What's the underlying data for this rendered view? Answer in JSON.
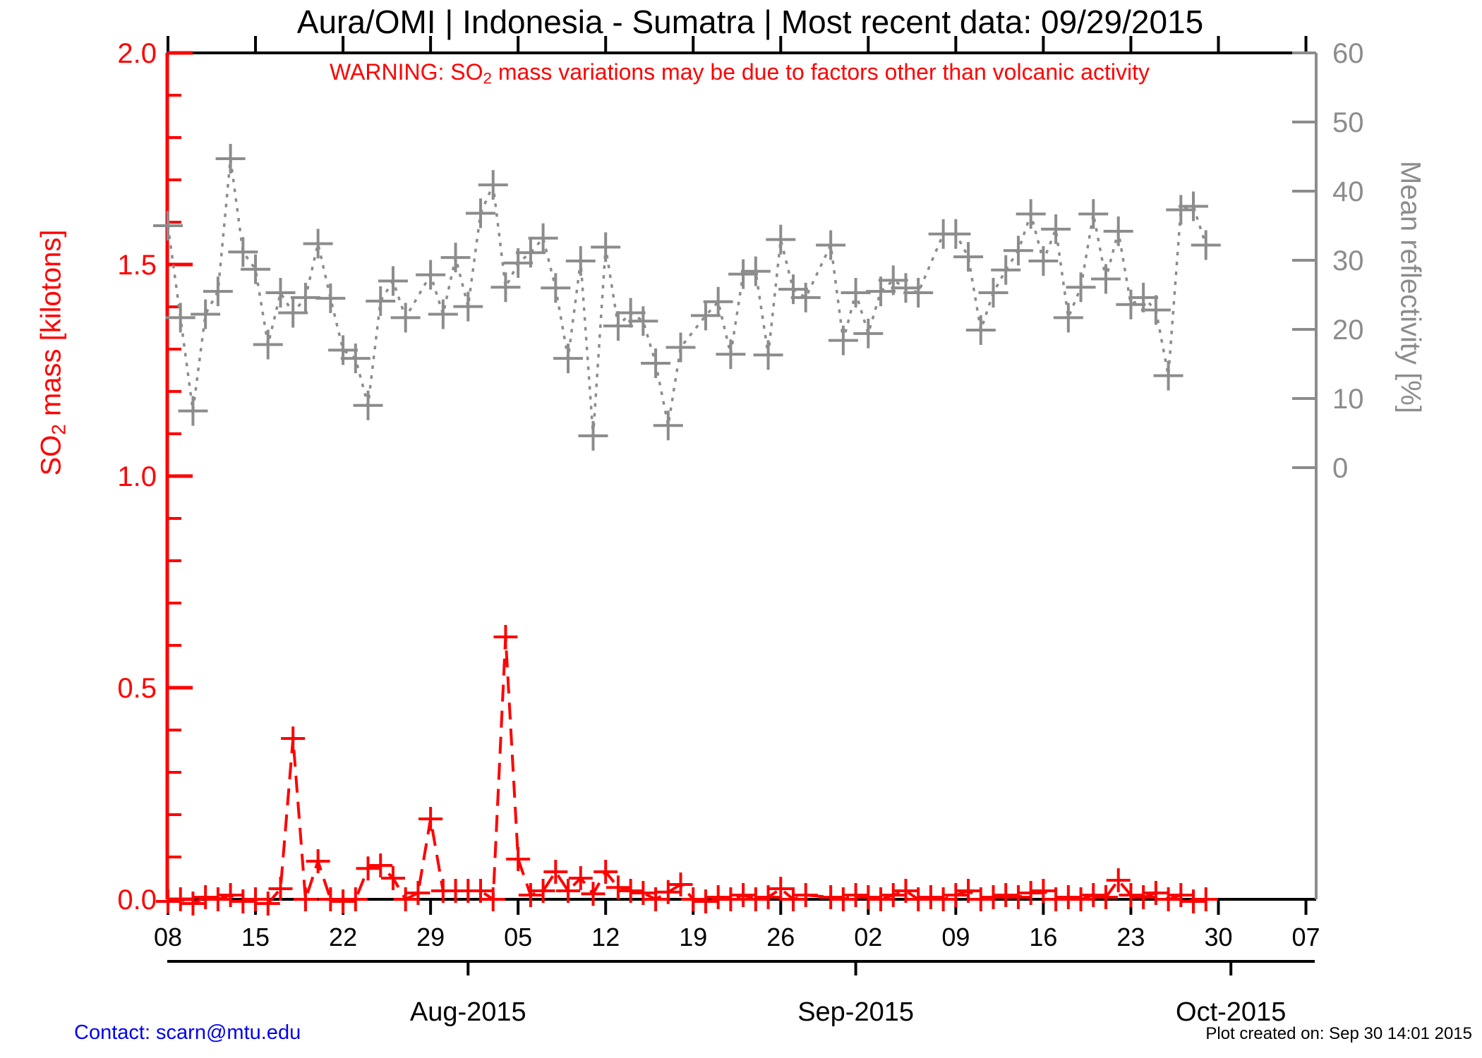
{
  "page": {
    "title": "Aura/OMI | Indonesia - Sumatra | Most recent data: 09/29/2015"
  },
  "warning": {
    "prefix": "WARNING: SO",
    "sub": "2",
    "suffix": " mass variations may be due to factors other than volcanic activity",
    "color": "#ff0000"
  },
  "axes": {
    "left": {
      "title_prefix": "SO",
      "title_sub": "2",
      "title_suffix": " mass [kilotons]",
      "tick_labels": [
        "0.0",
        "0.5",
        "1.0",
        "1.5",
        "2.0"
      ],
      "tick_values": [
        0,
        0.5,
        1,
        1.5,
        2
      ],
      "minor_step": 0.1,
      "range": [
        0,
        2
      ],
      "color": "#ff0000"
    },
    "right": {
      "title": "Mean reflectivity [%]",
      "tick_labels": [
        "0",
        "10",
        "20",
        "30",
        "40",
        "50",
        "60"
      ],
      "tick_values": [
        0,
        10,
        20,
        30,
        40,
        50,
        60
      ],
      "range_shown": [
        0,
        60
      ],
      "color": "#8c8c8c"
    },
    "bottom": {
      "week_tick_labels": [
        "08",
        "15",
        "22",
        "29",
        "05",
        "12",
        "19",
        "26",
        "02",
        "09",
        "16",
        "23",
        "30",
        "07"
      ],
      "week_tick_days": [
        0,
        7,
        14,
        21,
        28,
        35,
        42,
        49,
        56,
        63,
        70,
        77,
        84,
        91
      ],
      "color": "#000000"
    },
    "months": {
      "labels": [
        "Aug-2015",
        "Sep-2015",
        "Oct-2015"
      ],
      "tick_days": [
        24,
        55,
        85
      ],
      "color": "#000000"
    }
  },
  "footer": {
    "contact": "Contact: scarn@mtu.edu",
    "contact_color": "#0000ee",
    "created": "Plot created on: Sep 30 14:01 2015"
  },
  "chart_data": {
    "type": "line",
    "title": "Aura/OMI | Indonesia - Sumatra | Most recent data: 09/29/2015",
    "x_start_date": "2015-07-08",
    "x_end_axis_date": "2015-10-07",
    "x_tick_dates": [
      "07-08",
      "07-15",
      "07-22",
      "07-29",
      "08-05",
      "08-12",
      "08-19",
      "08-26",
      "09-02",
      "09-09",
      "09-16",
      "09-23",
      "09-30",
      "10-07"
    ],
    "left_ylabel": "SO2 mass [kilotons]",
    "left_ylim": [
      0,
      2
    ],
    "right_ylabel": "Mean reflectivity [%]",
    "right_ylim_shown": [
      0,
      60
    ],
    "grid": false,
    "legend": "none",
    "x_dates": [
      "07-08",
      "07-09",
      "07-10",
      "07-11",
      "07-12",
      "07-13",
      "07-14",
      "07-15",
      "07-16",
      "07-17",
      "07-18",
      "07-19",
      "07-20",
      "07-21",
      "07-22",
      "07-23",
      "07-24",
      "07-25",
      "07-26",
      "07-27",
      "07-28",
      "07-29",
      "07-30",
      "07-31",
      "08-01",
      "08-02",
      "08-03",
      "08-04",
      "08-05",
      "08-06",
      "08-07",
      "08-08",
      "08-09",
      "08-10",
      "08-11",
      "08-12",
      "08-13",
      "08-14",
      "08-15",
      "08-16",
      "08-17",
      "08-18",
      "08-19",
      "08-20",
      "08-21",
      "08-22",
      "08-23",
      "08-24",
      "08-25",
      "08-26",
      "08-27",
      "08-28",
      "08-29",
      "08-30",
      "08-31",
      "09-01",
      "09-02",
      "09-03",
      "09-04",
      "09-05",
      "09-06",
      "09-07",
      "09-08",
      "09-09",
      "09-10",
      "09-11",
      "09-12",
      "09-13",
      "09-14",
      "09-15",
      "09-16",
      "09-17",
      "09-18",
      "09-19",
      "09-20",
      "09-21",
      "09-22",
      "09-23",
      "09-24",
      "09-25",
      "09-26",
      "09-27",
      "09-28",
      "09-29"
    ],
    "series": [
      {
        "name": "SO2 mass",
        "unit": "kilotons",
        "axis": "left",
        "color": "#ff0000",
        "linestyle": "dashed",
        "marker": "plus",
        "values": [
          -0.005,
          0.0,
          -0.01,
          0.005,
          0.0,
          0.01,
          -0.005,
          0.0,
          -0.01,
          0.025,
          0.38,
          0.0,
          0.09,
          0.0,
          -0.005,
          0.0,
          0.073,
          0.08,
          0.05,
          0.0,
          0.015,
          0.19,
          0.02,
          0.02,
          0.02,
          0.02,
          0.0,
          0.62,
          0.095,
          0.01,
          0.02,
          0.065,
          0.02,
          0.05,
          0.013,
          0.065,
          0.028,
          0.02,
          0.015,
          0.0,
          0.017,
          0.035,
          0.0,
          -0.005,
          0.005,
          0.0,
          0.01,
          0.0,
          0.005,
          0.025,
          0.0,
          0.01,
          null,
          0.005,
          0.0,
          0.01,
          0.005,
          0.0,
          0.01,
          0.02,
          0.0,
          0.005,
          0.0,
          0.01,
          0.02,
          0.0,
          0.005,
          0.01,
          0.005,
          0.015,
          0.02,
          0.0,
          0.005,
          0.0,
          0.01,
          0.005,
          0.045,
          0.01,
          0.005,
          0.015,
          0.0,
          0.01,
          -0.005,
          0.0
        ]
      },
      {
        "name": "Mean reflectivity",
        "unit": "%",
        "axis": "right",
        "color": "#8c8c8c",
        "linestyle": "dotted",
        "marker": "plus",
        "values": [
          35.0,
          21.7,
          8.2,
          22.2,
          25.5,
          44.7,
          31.2,
          28.7,
          17.8,
          25.3,
          22.4,
          24.6,
          32.4,
          24.5,
          17.0,
          15.8,
          9.0,
          24.1,
          27.0,
          21.7,
          null,
          27.9,
          22.2,
          30.4,
          23.3,
          36.8,
          40.9,
          26.1,
          29.6,
          31.1,
          33.2,
          26.0,
          15.8,
          29.9,
          4.6,
          31.9,
          20.5,
          22.4,
          21.2,
          15.1,
          6.1,
          17.4,
          null,
          22.0,
          24.0,
          16.4,
          28.0,
          28.4,
          16.3,
          33.0,
          25.8,
          24.6,
          null,
          32.2,
          18.4,
          25.3,
          19.4,
          25.5,
          27.1,
          26.0,
          25.3,
          null,
          33.8,
          33.8,
          30.5,
          19.9,
          25.3,
          28.6,
          31.4,
          36.7,
          29.9,
          34.5,
          21.7,
          26.1,
          36.7,
          27.3,
          34.2,
          23.6,
          24.6,
          22.8,
          13.3,
          37.3,
          37.8,
          32.2
        ]
      }
    ]
  }
}
